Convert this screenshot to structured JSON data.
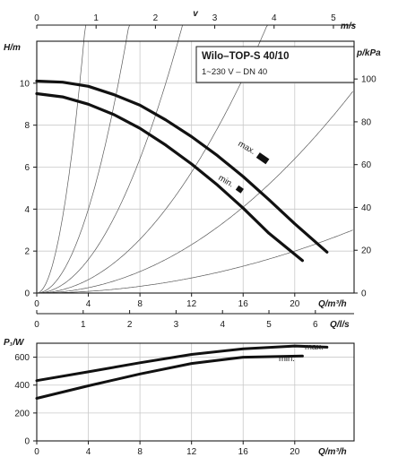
{
  "chart_data": [
    {
      "type": "line",
      "title": "Wilo–TOP-S 40/10",
      "subtitle": "1~230 V – DN 40",
      "ylabel": "H/m",
      "y2label": "p/kPa",
      "xlabel": "Q/m³/h",
      "top_axis_label": "v",
      "top_axis_unit": "m/s",
      "q_ls_label": "Q/l/s",
      "xlim": [
        0,
        24.6
      ],
      "ylim": [
        0,
        12
      ],
      "x_ticks": [
        "0",
        "4",
        "8",
        "12",
        "16",
        "20"
      ],
      "y_ticks": [
        "0",
        "2",
        "4",
        "6",
        "8",
        "10"
      ],
      "y2_ticks": [
        "0",
        "20",
        "40",
        "60",
        "80",
        "100"
      ],
      "v_ticks": [
        "0",
        "1",
        "2",
        "3",
        "4",
        "5"
      ],
      "q_ls_ticks": [
        "0",
        "1",
        "2",
        "3",
        "4",
        "5",
        "6"
      ],
      "v_scale_m_s_per_m3h": 0.2174,
      "series": [
        {
          "name": "max.",
          "x": [
            0,
            2,
            4,
            6,
            8,
            10,
            12,
            14,
            16,
            18,
            20,
            22.5
          ],
          "y": [
            10.1,
            10.05,
            9.85,
            9.45,
            8.95,
            8.25,
            7.45,
            6.55,
            5.55,
            4.45,
            3.3,
            1.95
          ]
        },
        {
          "name": "min.",
          "x": [
            0,
            2,
            4,
            6,
            8,
            10,
            12,
            14,
            16,
            18,
            20.6
          ],
          "y": [
            9.5,
            9.35,
            9.0,
            8.5,
            7.85,
            7.05,
            6.15,
            5.15,
            4.05,
            2.85,
            1.55
          ]
        }
      ],
      "system_curve_k": [
        0.9,
        0.25,
        0.1,
        0.04,
        0.016,
        0.005
      ],
      "grid": true
    },
    {
      "type": "line",
      "ylabel": "P₁/W",
      "xlabel": "Q/m³/h",
      "xlim": [
        0,
        24.6
      ],
      "ylim": [
        0,
        700
      ],
      "x_ticks": [
        "0",
        "4",
        "8",
        "12",
        "16",
        "20"
      ],
      "y_ticks": [
        "0",
        "200",
        "400",
        "600"
      ],
      "series": [
        {
          "name": "max.",
          "x": [
            0,
            4,
            8,
            12,
            16,
            20,
            22.5
          ],
          "y": [
            432,
            495,
            560,
            620,
            660,
            680,
            672
          ]
        },
        {
          "name": "min.",
          "x": [
            0,
            4,
            8,
            12,
            16,
            20.6
          ],
          "y": [
            305,
            395,
            480,
            555,
            600,
            608
          ]
        }
      ],
      "grid": true
    }
  ]
}
